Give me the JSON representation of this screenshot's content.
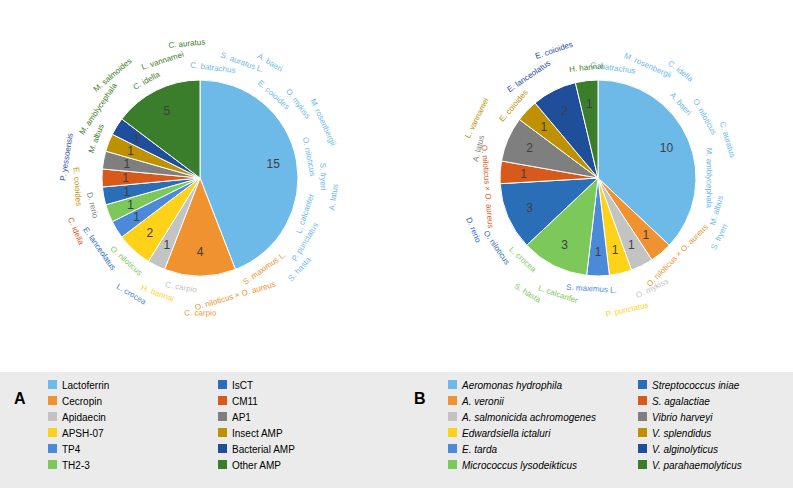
{
  "chart_data": [
    {
      "type": "pie",
      "panel": "A",
      "categories": [
        "Lactoferrin",
        "Cecropin",
        "Apidaecin",
        "APSH-07",
        "TP4",
        "TH2-3",
        "IsCT",
        "CM11",
        "AP1",
        "Insect AMP",
        "Bacterial AMP",
        "Other AMP"
      ],
      "values": [
        15,
        4,
        1,
        2,
        1,
        1,
        1,
        1,
        1,
        1,
        1,
        5
      ],
      "colors": [
        "#6db9e8",
        "#f0922f",
        "#c3c3c3",
        "#ffd21a",
        "#4a8ad8",
        "#7cc85a",
        "#2a6eb8",
        "#d75a1a",
        "#7f7f7f",
        "#bf9000",
        "#1f4e9a",
        "#3a7d2a"
      ],
      "data_labels": true,
      "legend": "bottom",
      "species": [
        [
          "C. batrachus",
          "S. auratus L.",
          "A. baeri",
          "E. coioides",
          "O. mykiss",
          "M. rosenbergii",
          "O. niloticus",
          "S. fryeri",
          "A. latus",
          "L. calcarifer",
          "P. punctatus",
          "S. hasta"
        ],
        [
          "S. maximus L.",
          "O. niloticus × O. aureus",
          "C. carpio"
        ],
        [
          "C. carpio"
        ],
        [
          "H. hannai"
        ],
        [
          "L. crocea"
        ],
        [
          "O. niloticus"
        ],
        [
          "E. lanceolatus"
        ],
        [
          "C. idella"
        ],
        [
          "D. rerio"
        ],
        [
          "E. coioides"
        ],
        [
          "P. yessoensis"
        ],
        [
          "M. albus",
          "M. amblycephala",
          "M. salmoides",
          "C. idella",
          "L. vannamei",
          "C. auratus"
        ]
      ]
    },
    {
      "type": "pie",
      "panel": "B",
      "categories": [
        "Aeromonas hydrophila",
        "A. veronii",
        "A. salmonicida achromogenes",
        "Edwardsiella ictaluri",
        "E. tarda",
        "Micrococcus lysodeikticus",
        "Streptococcus iniae",
        "S. agalactiae",
        "Vibrio harveyi",
        "V. splendidus",
        "V. alginolyticus",
        "V. parahaemolyticus"
      ],
      "values": [
        10,
        1,
        1,
        1,
        1,
        3,
        3,
        1,
        2,
        1,
        2,
        1
      ],
      "colors": [
        "#6db9e8",
        "#f0922f",
        "#c3c3c3",
        "#ffd21a",
        "#4a8ad8",
        "#7cc85a",
        "#2a6eb8",
        "#d75a1a",
        "#7f7f7f",
        "#bf9000",
        "#1f4e9a",
        "#3a7d2a"
      ],
      "data_labels": true,
      "legend": "bottom",
      "species": [
        [
          "C. batrachus",
          "M. rosenbergii",
          "C. idella",
          "A. baeri",
          "O. niloticus",
          "C. auratus",
          "M. amblycephala",
          "M. albus",
          "S. fryeri"
        ],
        [
          "O. niloticus × O. aureus"
        ],
        [
          "O. mykiss"
        ],
        [
          "P. punctatus"
        ],
        [
          "S. maximus L."
        ],
        [
          "L. calcarifer",
          "S. hasta",
          "L. crocea"
        ],
        [
          "O. niloticus",
          "D. rerio"
        ],
        [
          "O. niloticus × O. aureus"
        ],
        [
          "A. latus"
        ],
        [
          "L. vannamei",
          "E. coioides"
        ],
        [
          "E. lanceolatus",
          "E. coioides"
        ],
        [
          "H. hannai"
        ]
      ]
    }
  ]
}
